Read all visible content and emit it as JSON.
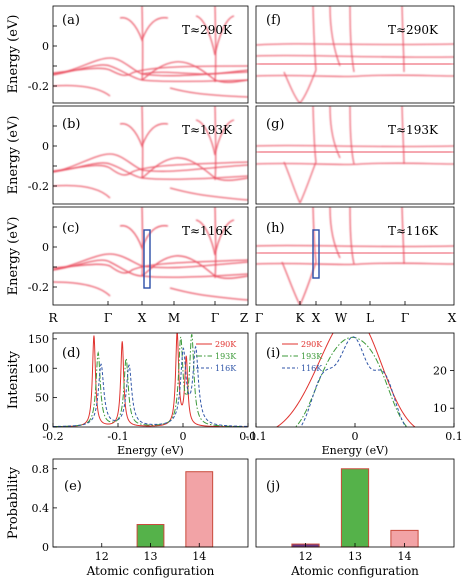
{
  "chart_data": [
    {
      "id": "a",
      "type": "heatmap",
      "panel_label": "(a)",
      "annotation": "T≈290K",
      "ylabel": "Energy (eV)",
      "ylim": [
        -0.3,
        0.2
      ],
      "yticks": [
        "0",
        "-0.2"
      ],
      "kpath": [
        "R",
        "Γ",
        "X",
        "M",
        "Γ",
        "Z"
      ],
      "show_xticks": false,
      "colormap": [
        "#ffffff",
        "#e8374d"
      ]
    },
    {
      "id": "b",
      "type": "heatmap",
      "panel_label": "(b)",
      "annotation": "T≈193K",
      "ylabel": "Energy (eV)",
      "ylim": [
        -0.3,
        0.2
      ],
      "yticks": [
        "0",
        "-0.2"
      ],
      "kpath": [
        "R",
        "Γ",
        "X",
        "M",
        "Γ",
        "Z"
      ],
      "show_xticks": false
    },
    {
      "id": "c",
      "type": "heatmap",
      "panel_label": "(c)",
      "annotation": "T≈116K",
      "ylabel": "Energy (eV)",
      "ylim": [
        -0.3,
        0.2
      ],
      "yticks": [
        "0",
        "-0.2"
      ],
      "kpath": [
        "R",
        "Γ",
        "X",
        "M",
        "Γ",
        "Z"
      ],
      "show_xticks": true,
      "highlight_box": {
        "k": "X",
        "energy_range": [
          -0.24,
          0.07
        ],
        "color": "#2b4ea8"
      }
    },
    {
      "id": "f",
      "type": "heatmap",
      "panel_label": "(f)",
      "annotation": "T≈290K",
      "ylim": [
        -0.3,
        0.2
      ],
      "kpath": [
        "Γ",
        "K",
        "X",
        "W",
        "L",
        "Γ",
        "X"
      ],
      "show_xticks": false
    },
    {
      "id": "g",
      "type": "heatmap",
      "panel_label": "(g)",
      "annotation": "T≈193K",
      "ylim": [
        -0.3,
        0.2
      ],
      "kpath": [
        "Γ",
        "K",
        "X",
        "W",
        "L",
        "Γ",
        "X"
      ],
      "show_xticks": false
    },
    {
      "id": "h",
      "type": "heatmap",
      "panel_label": "(h)",
      "annotation": "T≈116K",
      "ylim": [
        -0.3,
        0.2
      ],
      "kpath": [
        "Γ",
        "K",
        "X",
        "W",
        "L",
        "Γ",
        "X"
      ],
      "show_xticks": true,
      "highlight_box": {
        "k": "X",
        "energy_range": [
          -0.18,
          0.06
        ],
        "color": "#2b4ea8"
      }
    },
    {
      "id": "d",
      "type": "line",
      "panel_label": "(d)",
      "xlabel": "Energy (eV)",
      "ylabel": "Intensity",
      "xlim": [
        -0.2,
        0.1
      ],
      "ylim": [
        0,
        160
      ],
      "xticks": [
        "-0.2",
        "-0.1",
        "0",
        "0.1"
      ],
      "yticks": [
        "0",
        "50",
        "100",
        "150"
      ],
      "legend_position": "right",
      "series": [
        {
          "name": "290K",
          "color": "#e0332f",
          "style": "solid",
          "peaks": [
            {
              "x": -0.137,
              "h": 155,
              "w": 0.0028
            },
            {
              "x": -0.0935,
              "h": 145,
              "w": 0.0028
            },
            {
              "x": -0.009,
              "h": 158,
              "w": 0.0028
            },
            {
              "x": 0.005,
              "h": 115,
              "w": 0.0028
            }
          ]
        },
        {
          "name": "193K",
          "color": "#3d9a3a",
          "style": "dashdot",
          "peaks": [
            {
              "x": -0.1305,
              "h": 125,
              "w": 0.004
            },
            {
              "x": -0.0875,
              "h": 115,
              "w": 0.004
            },
            {
              "x": -0.0035,
              "h": 145,
              "w": 0.004
            },
            {
              "x": 0.0135,
              "h": 150,
              "w": 0.004
            }
          ]
        },
        {
          "name": "116K",
          "color": "#3056a8",
          "style": "dashed",
          "peaks": [
            {
              "x": -0.126,
              "h": 105,
              "w": 0.005
            },
            {
              "x": -0.083,
              "h": 103,
              "w": 0.005
            },
            {
              "x": 0.0005,
              "h": 125,
              "w": 0.005
            },
            {
              "x": 0.0195,
              "h": 128,
              "w": 0.005
            }
          ]
        }
      ]
    },
    {
      "id": "i",
      "type": "line",
      "panel_label": "(i)",
      "xlabel": "Energy (eV)",
      "xlim": [
        -0.1,
        0.1
      ],
      "ylim": [
        5,
        30
      ],
      "y_axis_side": "right",
      "xticks": [
        "-0.1",
        "0",
        "0.1"
      ],
      "yticks": [
        "10",
        "20"
      ],
      "legend_position": "left",
      "series": [
        {
          "name": "290K",
          "color": "#e0332f",
          "style": "solid",
          "peaks": [
            {
              "x": -0.018,
              "h": 19.5,
              "w": 0.03
            },
            {
              "x": 0.008,
              "h": 17,
              "w": 0.025
            }
          ]
        },
        {
          "name": "193K",
          "color": "#3d9a3a",
          "style": "dashdot",
          "peaks": [
            {
              "x": -0.028,
              "h": 14.5,
              "w": 0.017
            },
            {
              "x": -0.003,
              "h": 17,
              "w": 0.016
            },
            {
              "x": 0.022,
              "h": 15,
              "w": 0.016
            }
          ]
        },
        {
          "name": "116K",
          "color": "#3056a8",
          "style": "dashed",
          "peaks": [
            {
              "x": -0.032,
              "h": 15.5,
              "w": 0.012
            },
            {
              "x": -0.008,
              "h": 16,
              "w": 0.011
            },
            {
              "x": 0.004,
              "h": 13.5,
              "w": 0.01
            },
            {
              "x": 0.028,
              "h": 16.5,
              "w": 0.012
            }
          ]
        }
      ]
    },
    {
      "id": "e",
      "type": "bar",
      "panel_label": "(e)",
      "xlabel": "Atomic configuration",
      "ylabel": "Probability",
      "categories": [
        "12",
        "13",
        "14"
      ],
      "values": [
        0.0,
        0.23,
        0.77
      ],
      "ylim": [
        0,
        0.9
      ],
      "yticks": [
        "0",
        "0.4",
        "0.8"
      ],
      "colors": [
        "#6d3a86",
        "#55b24a",
        "#f2a3a6"
      ],
      "edge": "#c94a3c"
    },
    {
      "id": "j",
      "type": "bar",
      "panel_label": "(j)",
      "xlabel": "Atomic configuration",
      "categories": [
        "12",
        "13",
        "14"
      ],
      "values": [
        0.03,
        0.8,
        0.17
      ],
      "ylim": [
        0,
        0.9
      ],
      "colors": [
        "#6d3a86",
        "#55b24a",
        "#f2a3a6"
      ],
      "edge": "#c94a3c"
    }
  ]
}
